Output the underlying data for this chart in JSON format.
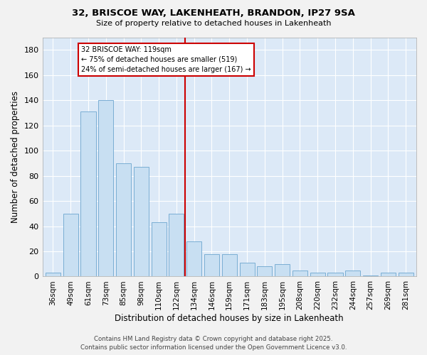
{
  "title1": "32, BRISCOE WAY, LAKENHEATH, BRANDON, IP27 9SA",
  "title2": "Size of property relative to detached houses in Lakenheath",
  "xlabel": "Distribution of detached houses by size in Lakenheath",
  "ylabel": "Number of detached properties",
  "categories": [
    "36sqm",
    "49sqm",
    "61sqm",
    "73sqm",
    "85sqm",
    "98sqm",
    "110sqm",
    "122sqm",
    "134sqm",
    "146sqm",
    "159sqm",
    "171sqm",
    "183sqm",
    "195sqm",
    "208sqm",
    "220sqm",
    "232sqm",
    "244sqm",
    "257sqm",
    "269sqm",
    "281sqm"
  ],
  "values": [
    3,
    50,
    131,
    140,
    90,
    87,
    43,
    50,
    28,
    18,
    18,
    11,
    8,
    10,
    5,
    3,
    3,
    5,
    1,
    3,
    3
  ],
  "bar_color": "#c8dff2",
  "bar_edge_color": "#7aaed4",
  "vline_x": 7.5,
  "vline_label": "32 BRISCOE WAY: 119sqm",
  "annotation_line1": "← 75% of detached houses are smaller (519)",
  "annotation_line2": "24% of semi-detached houses are larger (167) →",
  "box_color": "#ffffff",
  "box_edge_color": "#cc0000",
  "vline_color": "#cc0000",
  "ylim": [
    0,
    190
  ],
  "yticks": [
    0,
    20,
    40,
    60,
    80,
    100,
    120,
    140,
    160,
    180
  ],
  "bg_color": "#dce9f7",
  "footer1": "Contains HM Land Registry data © Crown copyright and database right 2025.",
  "footer2": "Contains public sector information licensed under the Open Government Licence v3.0."
}
